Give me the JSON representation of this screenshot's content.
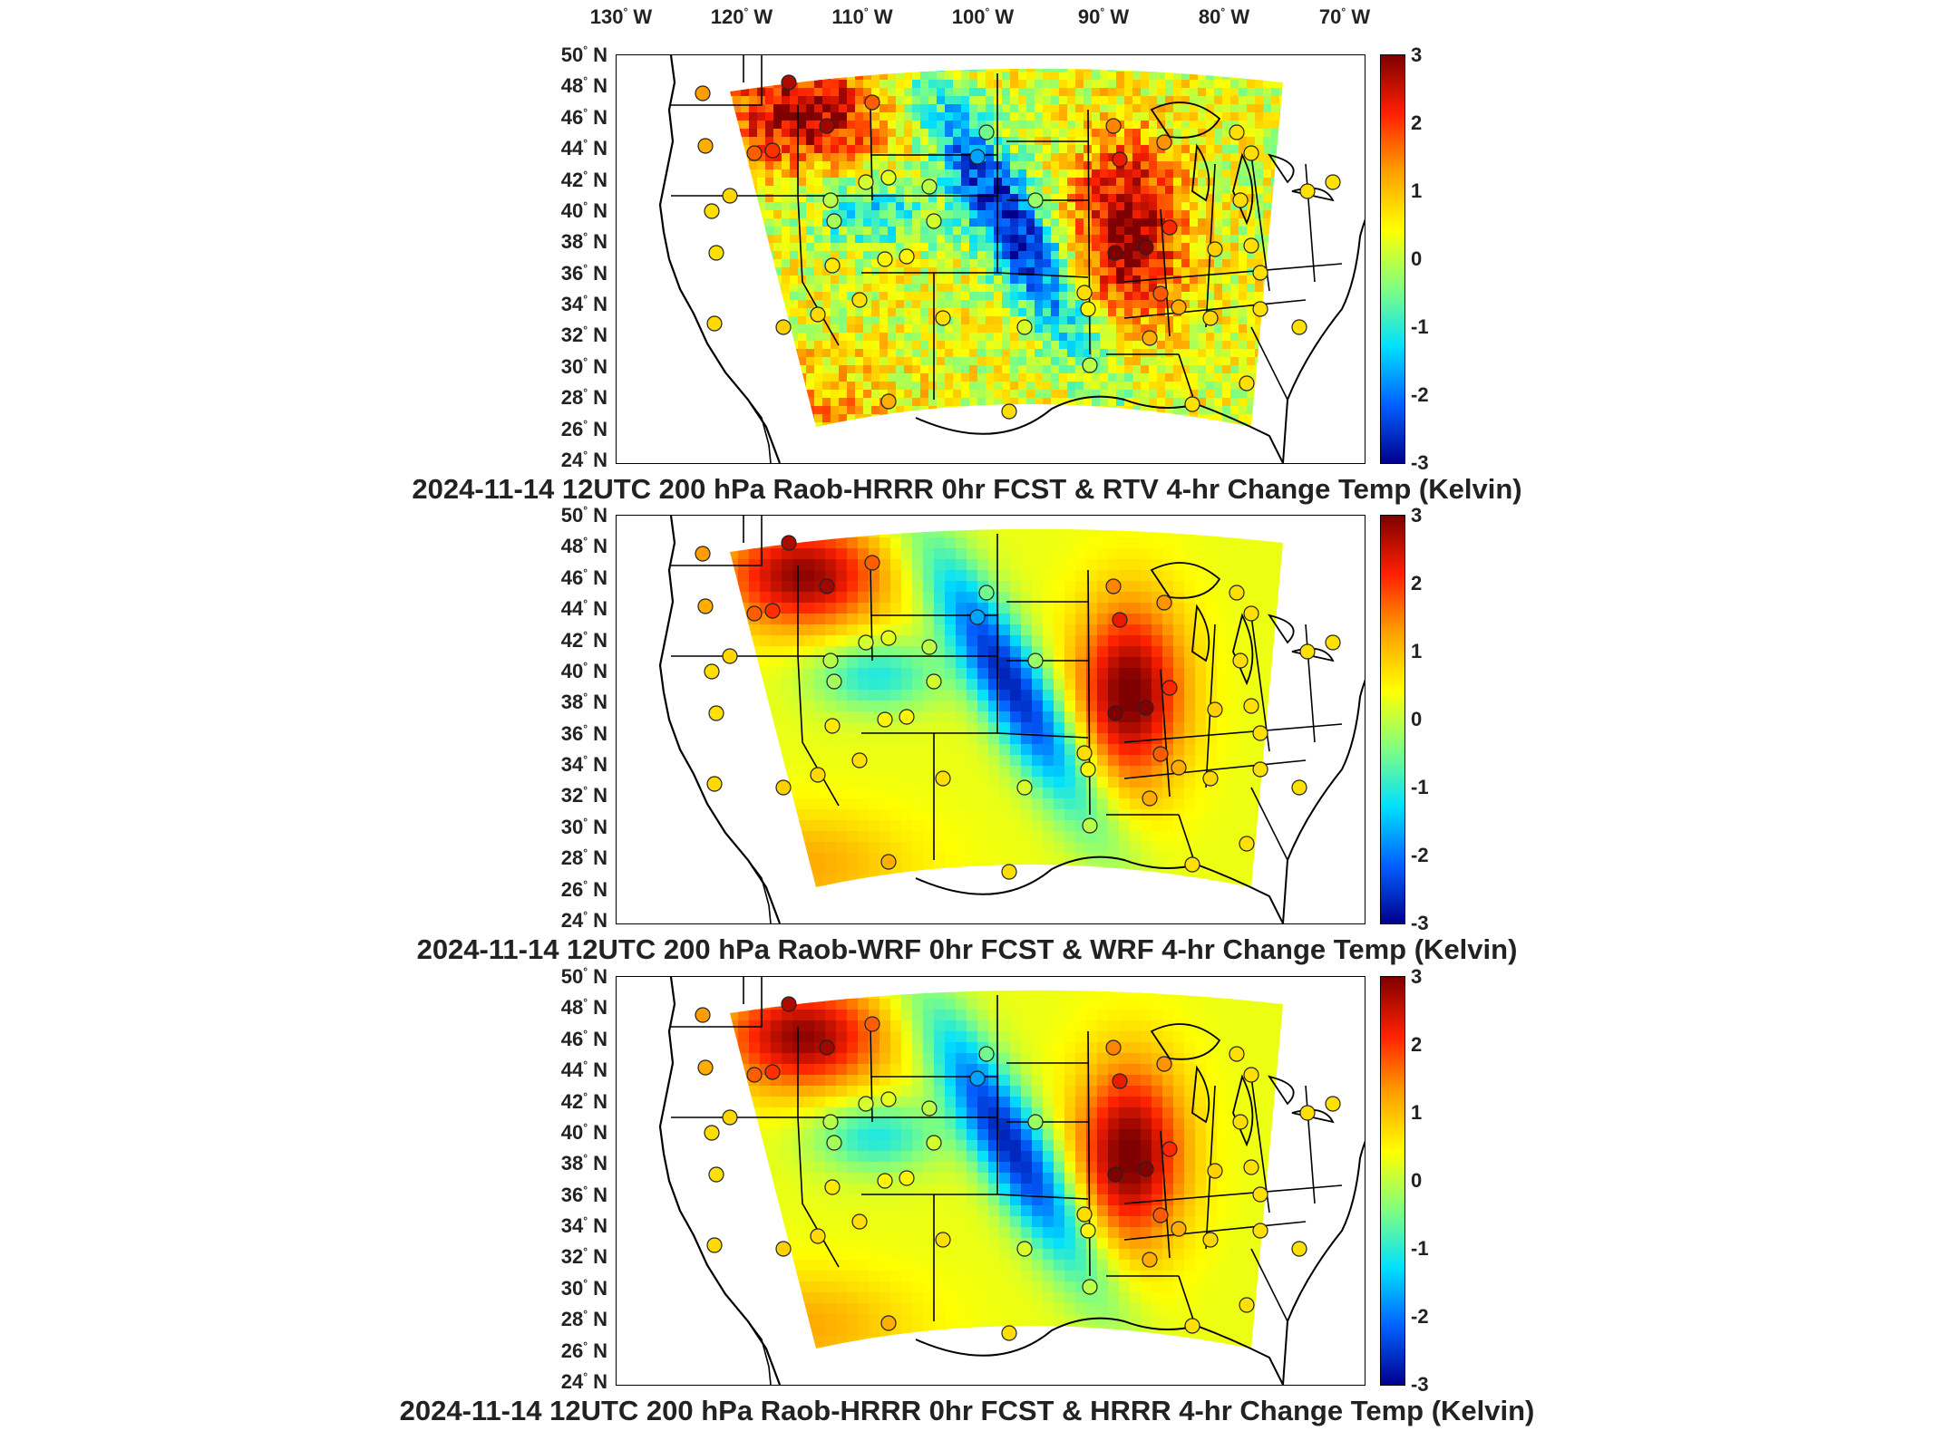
{
  "longitude_labels": [
    "130° W",
    "120° W",
    "110° W",
    "100° W",
    "90° W",
    "80° W",
    "70° W"
  ],
  "latitude_labels": [
    "50° N",
    "48° N",
    "46° N",
    "44° N",
    "42° N",
    "40° N",
    "38° N",
    "36° N",
    "34° N",
    "32° N",
    "30° N",
    "28° N",
    "26° N",
    "24° N"
  ],
  "colorbar": {
    "ticks": [
      "3",
      "2",
      "1",
      "0",
      "-1",
      "-2",
      "-3"
    ],
    "colors": [
      "#7f0000",
      "#ff2000",
      "#ffa000",
      "#ffff00",
      "#80ff80",
      "#00e0ff",
      "#0060ff",
      "#00008f"
    ]
  },
  "panels": [
    {
      "title": "2024-11-14 12UTC 200 hPa Raob-HRRR 0hr FCST & RTV 4-hr Change Temp (Kelvin)",
      "style": "noisy"
    },
    {
      "title": "2024-11-14 12UTC 200 hPa Raob-WRF 0hr FCST & WRF 4-hr Change Temp (Kelvin)",
      "style": "smooth"
    },
    {
      "title": "2024-11-14 12UTC 200 hPa Raob-HRRR 0hr FCST & HRRR 4-hr Change Temp (Kelvin)",
      "style": "smooth"
    }
  ]
}
